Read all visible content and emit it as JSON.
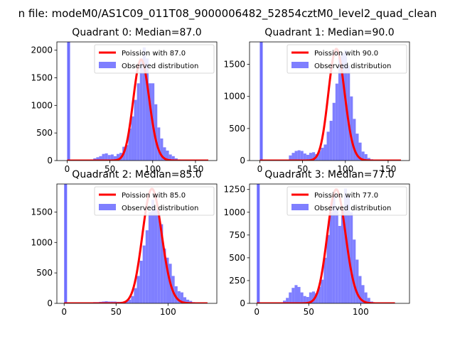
{
  "figure": {
    "suptitle": "n file: modeM0/AS1C09_011T08_9000006482_52854cztM0_level2_quad_clean"
  },
  "colors": {
    "poisson": "#ff0000",
    "observed": "#7f7fff",
    "spike": "#6f6fff"
  },
  "chart_data": [
    {
      "type": "bar",
      "title": "Quadrant 0: Median=87.0",
      "legend": [
        "Poission with 87.0",
        "Observed distribution"
      ],
      "legend_position": "top-right",
      "xlim": [
        -12,
        175
      ],
      "ylim": [
        0,
        2150
      ],
      "xticks": [
        0,
        50,
        100,
        150
      ],
      "yticks": [
        0,
        500,
        1000,
        1500,
        2000
      ],
      "bin_start": 0,
      "bin_width": 3.4,
      "spike_value": 2150,
      "counts": [
        2150,
        0,
        0,
        0,
        0,
        0,
        0,
        10,
        20,
        40,
        60,
        80,
        120,
        130,
        100,
        110,
        80,
        120,
        140,
        250,
        280,
        580,
        800,
        1100,
        1400,
        1850,
        2050,
        1850,
        1400,
        1400,
        1020,
        600,
        400,
        240,
        180,
        110,
        80,
        40,
        20,
        12,
        0,
        0,
        0,
        0,
        0,
        0,
        0,
        0,
        0,
        0
      ],
      "poisson": {
        "mu": 87,
        "peak": 1830,
        "x_range": [
          0,
          165
        ]
      }
    },
    {
      "type": "bar",
      "title": "Quadrant 1: Median=90.0",
      "legend": [
        "Poission with 90.0",
        "Observed distribution"
      ],
      "legend_position": "top-right",
      "xlim": [
        -12,
        175
      ],
      "ylim": [
        0,
        1850
      ],
      "xticks": [
        0,
        50,
        100,
        150
      ],
      "yticks": [
        0,
        500,
        1000,
        1500
      ],
      "bin_start": 0,
      "bin_width": 3.4,
      "spike_value": 1850,
      "counts": [
        1850,
        0,
        0,
        0,
        0,
        0,
        0,
        0,
        0,
        0,
        80,
        120,
        150,
        160,
        150,
        110,
        90,
        120,
        130,
        100,
        150,
        200,
        250,
        450,
        620,
        900,
        1200,
        1620,
        1680,
        1720,
        1480,
        1000,
        650,
        420,
        280,
        140,
        100,
        40,
        20,
        10,
        0,
        0,
        0,
        0,
        0,
        0,
        0,
        0,
        0,
        0
      ],
      "poisson": {
        "mu": 90,
        "peak": 1740,
        "x_range": [
          0,
          165
        ]
      }
    },
    {
      "type": "bar",
      "title": "Quadrant 2: Median=85.0",
      "legend": [
        "Poission with 85.0",
        "Observed distribution"
      ],
      "legend_position": "top-right",
      "xlim": [
        -7,
        147
      ],
      "ylim": [
        0,
        1960
      ],
      "xticks": [
        0,
        50,
        100
      ],
      "yticks": [
        0,
        500,
        1000,
        1500
      ],
      "bin_start": 0,
      "bin_width": 2.8,
      "spike_value": 1960,
      "counts": [
        1960,
        0,
        0,
        0,
        0,
        0,
        0,
        10,
        10,
        15,
        20,
        20,
        25,
        30,
        35,
        30,
        30,
        30,
        25,
        25,
        25,
        40,
        60,
        120,
        250,
        450,
        700,
        950,
        1200,
        1500,
        1700,
        1550,
        1450,
        1300,
        900,
        750,
        650,
        450,
        280,
        200,
        180,
        100,
        60,
        40,
        20,
        10,
        0,
        0,
        0,
        0
      ],
      "poisson": {
        "mu": 85,
        "peak": 1880,
        "x_range": [
          0,
          138
        ]
      }
    },
    {
      "type": "bar",
      "title": "Quadrant 3: Median=77.0",
      "legend": [
        "Poission with 77.0",
        "Observed distribution"
      ],
      "legend_position": "top-right",
      "xlim": [
        -7,
        147
      ],
      "ylim": [
        0,
        1310
      ],
      "xticks": [
        0,
        50,
        100
      ],
      "yticks": [
        0,
        250,
        500,
        750,
        1000,
        1250
      ],
      "bin_start": 0,
      "bin_width": 2.8,
      "spike_value": 1310,
      "counts": [
        1310,
        0,
        0,
        0,
        0,
        0,
        0,
        0,
        10,
        30,
        60,
        120,
        170,
        200,
        180,
        120,
        80,
        70,
        120,
        130,
        110,
        180,
        260,
        500,
        750,
        1000,
        1220,
        1050,
        850,
        1020,
        1260,
        1180,
        1000,
        700,
        480,
        300,
        200,
        120,
        60,
        20,
        10,
        0,
        0,
        0,
        0,
        0,
        0,
        0,
        0,
        0
      ],
      "poisson": {
        "mu": 77,
        "peak": 1250,
        "x_range": [
          0,
          133
        ]
      }
    }
  ]
}
